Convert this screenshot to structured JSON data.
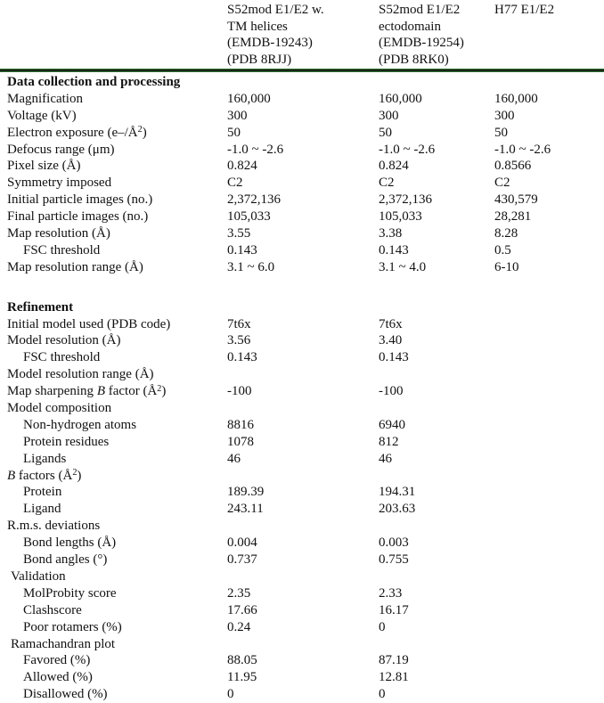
{
  "table": {
    "header": {
      "columns": [
        {
          "lines": [
            "S52mod E1/E2 w.",
            "TM helices",
            "(EMDB-19243)",
            "(PDB 8RJJ)"
          ]
        },
        {
          "lines": [
            "S52mod E1/E2",
            "ectodomain",
            "(EMDB-19254)",
            "(PDB 8RK0)"
          ]
        },
        {
          "lines": [
            "H77 E1/E2"
          ]
        }
      ]
    },
    "rows": [
      {
        "label": "Data collection and processing",
        "bold": true,
        "indent": 0,
        "values": [
          "",
          "",
          ""
        ]
      },
      {
        "label": "Magnification",
        "indent": 0,
        "values": [
          "160,000",
          "160,000",
          "160,000"
        ]
      },
      {
        "label": "Voltage (kV)",
        "indent": 0,
        "values": [
          "300",
          "300",
          "300"
        ]
      },
      {
        "label": [
          {
            "t": "Electron exposure (e–/Å"
          },
          {
            "t": "2",
            "sup": true
          },
          {
            "t": ")"
          }
        ],
        "indent": 0,
        "values": [
          "50",
          "50",
          "50"
        ]
      },
      {
        "label": "Defocus range (μm)",
        "indent": 0,
        "values": [
          "-1.0 ~ -2.6",
          "-1.0 ~ -2.6",
          "-1.0 ~ -2.6"
        ]
      },
      {
        "label": "Pixel size (Å)",
        "indent": 0,
        "values": [
          "0.824",
          "0.824",
          "0.8566"
        ]
      },
      {
        "label": "Symmetry imposed",
        "indent": 0,
        "values": [
          "C2",
          "C2",
          "C2"
        ]
      },
      {
        "label": "Initial particle images (no.)",
        "indent": 0,
        "values": [
          "2,372,136",
          "2,372,136",
          "430,579"
        ]
      },
      {
        "label": "Final particle images (no.)",
        "indent": 0,
        "values": [
          "105,033",
          "105,033",
          "28,281"
        ]
      },
      {
        "label": "Map resolution (Å)",
        "indent": 0,
        "values": [
          "3.55",
          "3.38",
          "8.28"
        ]
      },
      {
        "label": "FSC threshold",
        "indent": 2,
        "values": [
          "0.143",
          "0.143",
          "0.5"
        ]
      },
      {
        "label": "Map resolution range (Å)",
        "indent": 0,
        "values": [
          "3.1 ~ 6.0",
          "3.1 ~ 4.0",
          "6-10"
        ]
      },
      {
        "spacer": true
      },
      {
        "label": "Refinement",
        "bold": true,
        "indent": 0,
        "values": [
          "",
          "",
          ""
        ]
      },
      {
        "label": "Initial model used (PDB code)",
        "indent": 0,
        "values": [
          "7t6x",
          "7t6x",
          ""
        ]
      },
      {
        "label": "Model resolution (Å)",
        "indent": 0,
        "values": [
          "3.56",
          "3.40",
          ""
        ]
      },
      {
        "label": "FSC threshold",
        "indent": 2,
        "values": [
          "0.143",
          "0.143",
          ""
        ]
      },
      {
        "label": "Model resolution range (Å)",
        "indent": 0,
        "values": [
          "",
          "",
          ""
        ]
      },
      {
        "label": [
          {
            "t": "Map sharpening "
          },
          {
            "t": "B",
            "i": true
          },
          {
            "t": " factor (Å"
          },
          {
            "t": "2",
            "sup": true
          },
          {
            "t": ")"
          }
        ],
        "indent": 0,
        "values": [
          "-100",
          "-100",
          ""
        ]
      },
      {
        "label": "Model composition",
        "indent": 0,
        "values": [
          "",
          "",
          ""
        ]
      },
      {
        "label": "Non-hydrogen atoms",
        "indent": 2,
        "values": [
          "8816",
          "6940",
          ""
        ]
      },
      {
        "label": "Protein residues",
        "indent": 2,
        "values": [
          "1078",
          "812",
          ""
        ]
      },
      {
        "label": "Ligands",
        "indent": 2,
        "values": [
          "46",
          "46",
          ""
        ]
      },
      {
        "label": [
          {
            "t": "B",
            "i": true
          },
          {
            "t": " factors (Å"
          },
          {
            "t": "2",
            "sup": true
          },
          {
            "t": ")"
          }
        ],
        "indent": 0,
        "values": [
          "",
          "",
          ""
        ]
      },
      {
        "label": "Protein",
        "indent": 2,
        "values": [
          "189.39",
          "194.31",
          ""
        ]
      },
      {
        "label": "Ligand",
        "indent": 2,
        "values": [
          "243.11",
          "203.63",
          ""
        ]
      },
      {
        "label": "R.m.s. deviations",
        "indent": 0,
        "values": [
          "",
          "",
          ""
        ]
      },
      {
        "label": "Bond lengths (Å)",
        "indent": 2,
        "values": [
          "0.004",
          "0.003",
          ""
        ]
      },
      {
        "label": "Bond angles (°)",
        "indent": 2,
        "values": [
          "0.737",
          "0.755",
          ""
        ]
      },
      {
        "label": "Validation",
        "indent": 1,
        "values": [
          "",
          "",
          ""
        ]
      },
      {
        "label": "MolProbity score",
        "indent": 2,
        "values": [
          "2.35",
          "2.33",
          ""
        ]
      },
      {
        "label": "Clashscore",
        "indent": 2,
        "values": [
          "17.66",
          "16.17",
          ""
        ]
      },
      {
        "label": "Poor rotamers (%)",
        "indent": 2,
        "values": [
          "0.24",
          "0",
          ""
        ]
      },
      {
        "label": "Ramachandran plot",
        "indent": 1,
        "values": [
          "",
          "",
          ""
        ]
      },
      {
        "label": "Favored (%)",
        "indent": 2,
        "values": [
          "88.05",
          "87.19",
          ""
        ]
      },
      {
        "label": "Allowed (%)",
        "indent": 2,
        "values": [
          "11.95",
          "12.81",
          ""
        ]
      },
      {
        "label": "Disallowed (%)",
        "indent": 2,
        "values": [
          "0",
          "0",
          ""
        ]
      }
    ]
  },
  "colors": {
    "divider_green": "#2f9e33",
    "text": "#111111",
    "background": "#ffffff"
  }
}
